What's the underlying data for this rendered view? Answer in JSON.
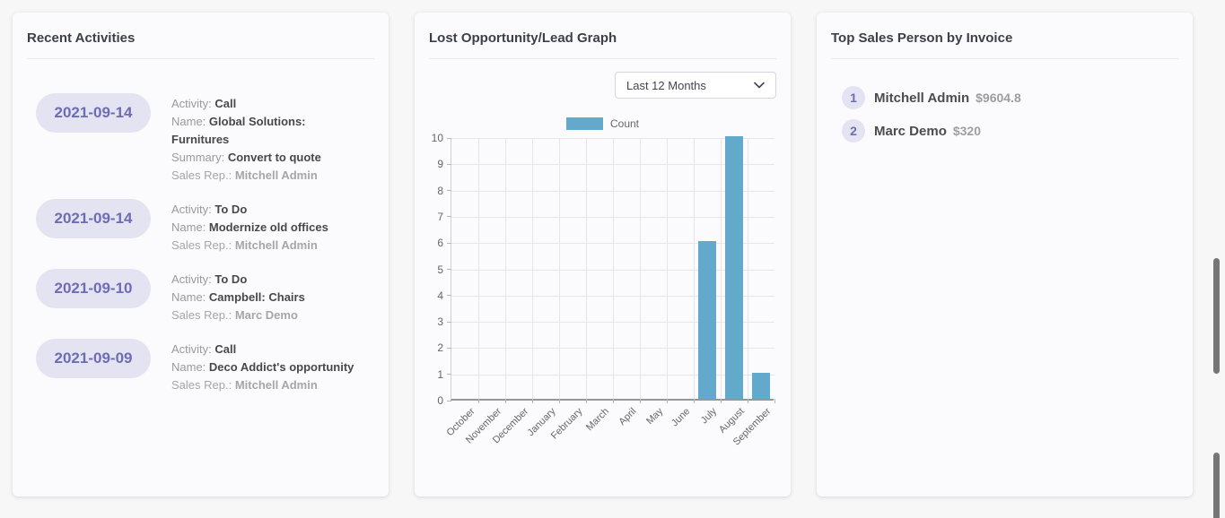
{
  "colors": {
    "accent_purple": "#6d6cb4",
    "pill_background": "#e4e3f1",
    "bar_blue": "#63a9cc"
  },
  "cards": {
    "recent_activities": {
      "title": "Recent Activities",
      "items": [
        {
          "date": "2021-09-14",
          "fields": [
            {
              "label": "Activity:",
              "value": "Call"
            },
            {
              "label": "Name:",
              "value": "Global Solutions: Furnitures"
            },
            {
              "label": "Summary:",
              "value": "Convert to quote"
            },
            {
              "label": "Sales Rep.:",
              "value": "Mitchell Admin",
              "muted": true
            }
          ]
        },
        {
          "date": "2021-09-14",
          "fields": [
            {
              "label": "Activity:",
              "value": "To Do"
            },
            {
              "label": "Name:",
              "value": "Modernize old offices"
            },
            {
              "label": "Sales Rep.:",
              "value": "Mitchell Admin",
              "muted": true
            }
          ]
        },
        {
          "date": "2021-09-10",
          "fields": [
            {
              "label": "Activity:",
              "value": "To Do"
            },
            {
              "label": "Name:",
              "value": "Campbell: Chairs"
            },
            {
              "label": "Sales Rep.:",
              "value": "Marc Demo",
              "muted": true
            }
          ]
        },
        {
          "date": "2021-09-09",
          "fields": [
            {
              "label": "Activity:",
              "value": "Call"
            },
            {
              "label": "Name:",
              "value": "Deco Addict's opportunity"
            },
            {
              "label": "Sales Rep.:",
              "value": "Mitchell Admin",
              "muted": true
            }
          ]
        }
      ]
    },
    "lost_graph": {
      "title": "Lost Opportunity/Lead Graph",
      "filter_value": "Last 12 Months",
      "legend_label": "Count"
    },
    "top_sales": {
      "title": "Top Sales Person by Invoice",
      "entries": [
        {
          "rank": "1",
          "name": "Mitchell Admin",
          "amount": "$9604.8"
        },
        {
          "rank": "2",
          "name": "Marc Demo",
          "amount": "$320"
        }
      ]
    }
  },
  "chart_data": {
    "type": "bar",
    "title": "Lost Opportunity/Lead Graph",
    "categories": [
      "October",
      "November",
      "December",
      "January",
      "February",
      "March",
      "April",
      "May",
      "June",
      "July",
      "August",
      "September"
    ],
    "series": [
      {
        "name": "Count",
        "values": [
          0,
          0,
          0,
          0,
          0,
          0,
          0,
          0,
          0,
          6,
          10,
          1
        ]
      }
    ],
    "xlabel": "",
    "ylabel": "",
    "ylim": [
      0,
      10
    ],
    "ytick_step": 1,
    "grid": true,
    "legend_position": "top",
    "bar_color": "#63a9cc"
  }
}
